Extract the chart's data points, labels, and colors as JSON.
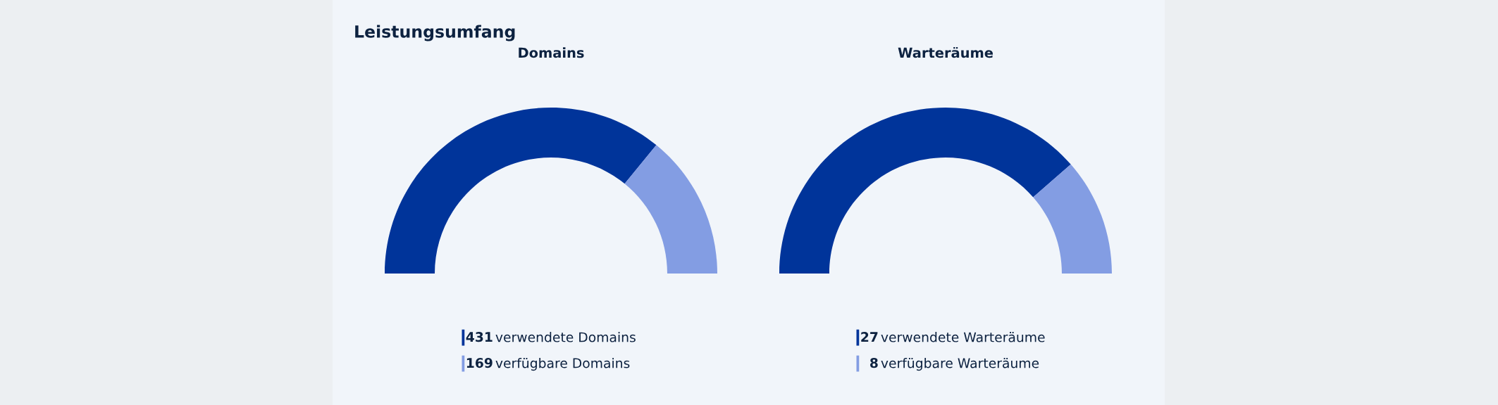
{
  "chart_data": [
    {
      "type": "other",
      "title": "Leistungsumfang"
    },
    {
      "type": "donut",
      "title": "Domains",
      "categories": [
        "verwendete Domains",
        "verfügbare Domains"
      ],
      "values": [
        431,
        169
      ],
      "colors": [
        "#00349a",
        "#839de3"
      ],
      "data_labels": true,
      "legend": "bottom"
    },
    {
      "type": "donut",
      "title": "Warteräume",
      "categories": [
        "verwendete Warteräume",
        "verfügbare Warteräume"
      ],
      "values": [
        27,
        8
      ],
      "colors": [
        "#00349a",
        "#839de3"
      ],
      "data_labels": true,
      "legend": "bottom"
    }
  ]
}
